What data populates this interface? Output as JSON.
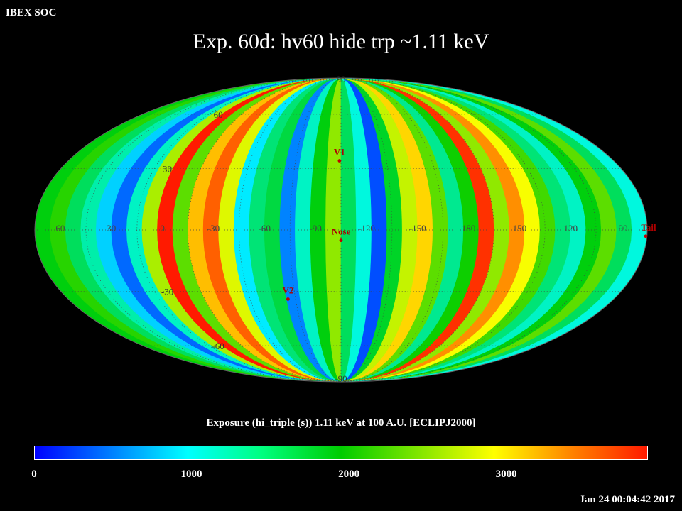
{
  "header": {
    "org": "IBEX SOC",
    "title": "Exp.   60d: hv60 hide trp ~1.11 keV",
    "timestamp": "Jan 24 00:04:42 2017"
  },
  "chart_data": {
    "type": "heatmap",
    "projection": "mollweide",
    "frame": "ECLIPJ2000",
    "title": "Exp.   60d: hv60 hide trp ~1.11 keV",
    "colorbar": {
      "caption": "Exposure (hi_triple (s))  1.11 keV at 100 A.U. [ECLIPJ2000]",
      "range": [
        0,
        3900
      ],
      "ticks": [
        "0",
        "1000",
        "2000",
        "3000"
      ],
      "tick_values": [
        0,
        1000,
        2000,
        3000
      ],
      "colors": [
        "#0000ff",
        "#00ffff",
        "#00cc00",
        "#ffff00",
        "#ff1a00"
      ]
    },
    "longitude_labels": [
      "60",
      "30",
      "0",
      "-30",
      "-60",
      "-90",
      "-120",
      "-150",
      "180",
      "150",
      "120",
      "90"
    ],
    "longitude_values": [
      60,
      30,
      0,
      -30,
      -60,
      -90,
      -120,
      -150,
      180,
      150,
      120,
      90
    ],
    "latitude_labels": [
      "90",
      "60",
      "30",
      "-30",
      "-60",
      "-90"
    ],
    "latitude_values": [
      90,
      60,
      30,
      -30,
      -60,
      -90
    ],
    "center_longitude": -105,
    "markers": [
      {
        "label": "V1",
        "lon": -104,
        "lat": 34
      },
      {
        "label": "Nose",
        "lon": -105,
        "lat": -5
      },
      {
        "label": "V2",
        "lon": -70,
        "lat": -34
      },
      {
        "label": "Tail",
        "lon": 75,
        "lat": -3
      }
    ],
    "strip_values": [
      1900,
      2100,
      1600,
      1300,
      800,
      400,
      1200,
      2600,
      3900,
      2300,
      3200,
      3600,
      2800,
      900,
      1500,
      1700,
      500,
      1200,
      1900,
      2500,
      1600,
      1100,
      300,
      1800,
      2700,
      3100,
      2300,
      1400,
      2000,
      3800,
      2500,
      3400,
      2900,
      2200,
      1500,
      1200,
      1900,
      2300,
      1600,
      1100
    ]
  }
}
